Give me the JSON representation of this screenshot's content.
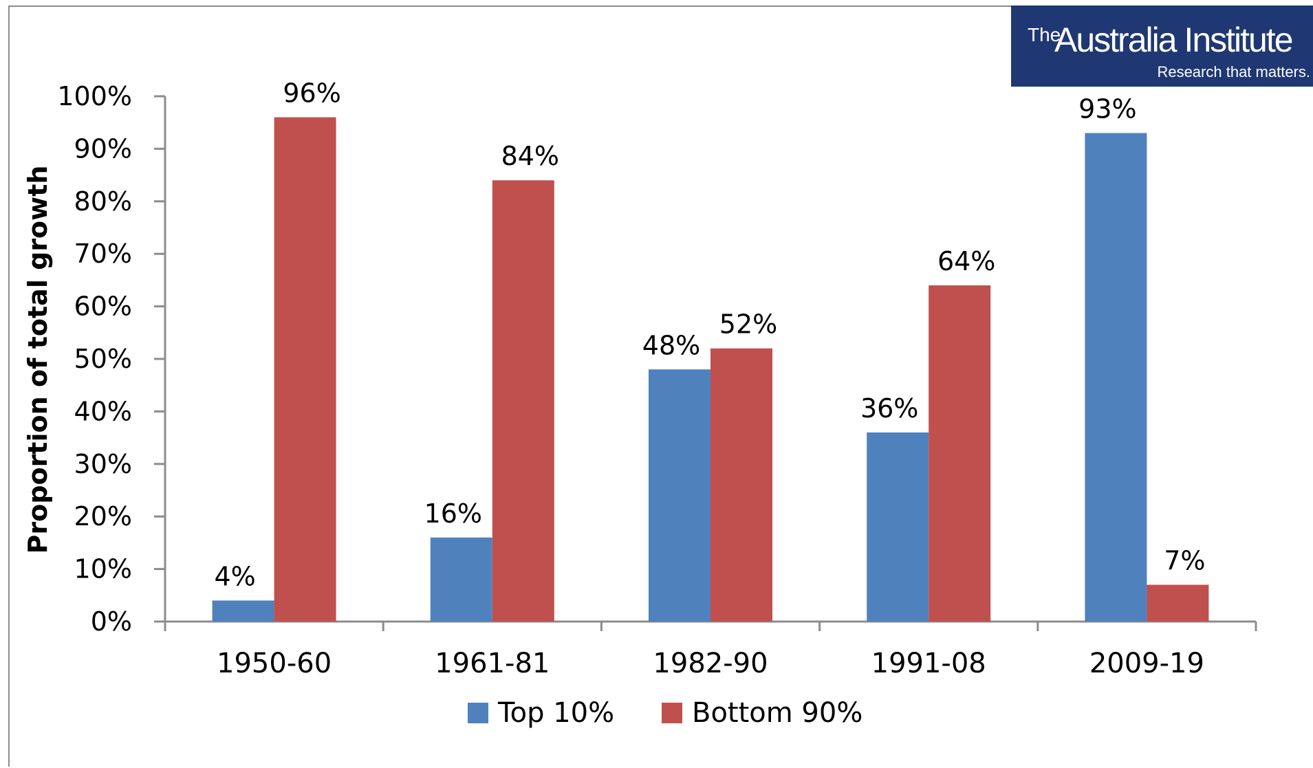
{
  "logo": {
    "the": "The",
    "name": "Australia Institute",
    "tagline": "Research that matters.",
    "bg_color": "#1f3873"
  },
  "chart_data": {
    "type": "bar",
    "title": "",
    "xlabel": "",
    "ylabel": "Proportion of total growth",
    "ylim": [
      0,
      100
    ],
    "yticks": [
      "0%",
      "10%",
      "20%",
      "30%",
      "40%",
      "50%",
      "60%",
      "70%",
      "80%",
      "90%",
      "100%"
    ],
    "categories": [
      "1950-60",
      "1961-81",
      "1982-90",
      "1991-08",
      "2009-19"
    ],
    "series": [
      {
        "name": "Top 10%",
        "color": "#4f81bd",
        "values": [
          4,
          16,
          48,
          36,
          93
        ],
        "labels": [
          "4%",
          "16%",
          "48%",
          "36%",
          "93%"
        ]
      },
      {
        "name": "Bottom 90%",
        "color": "#c0504d",
        "values": [
          96,
          84,
          52,
          64,
          7
        ],
        "labels": [
          "96%",
          "84%",
          "52%",
          "64%",
          "7%"
        ]
      }
    ],
    "legend_position": "bottom",
    "grid": false
  }
}
